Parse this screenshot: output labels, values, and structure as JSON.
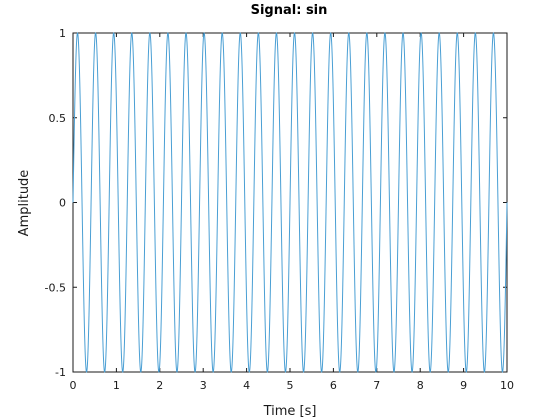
{
  "chart_data": {
    "type": "line",
    "title": "Signal: sin",
    "xlabel": "Time [s]",
    "ylabel": "Amplitude",
    "xlim": [
      0,
      10
    ],
    "ylim": [
      -1,
      1
    ],
    "x_ticks": [
      "0",
      "1",
      "2",
      "3",
      "4",
      "5",
      "6",
      "7",
      "8",
      "9",
      "10"
    ],
    "y_ticks": [
      "1",
      "0.5",
      "0",
      "-0.5",
      "-1"
    ],
    "x_tick_values": [
      0,
      1,
      2,
      3,
      4,
      5,
      6,
      7,
      8,
      9,
      10
    ],
    "y_tick_values": [
      1,
      0.5,
      0,
      -0.5,
      -1
    ],
    "grid": false,
    "legend": "none",
    "series": [
      {
        "function": "sin",
        "frequency_hz": 2.4,
        "amplitude": 1,
        "color": "#4a9fd4"
      }
    ]
  }
}
